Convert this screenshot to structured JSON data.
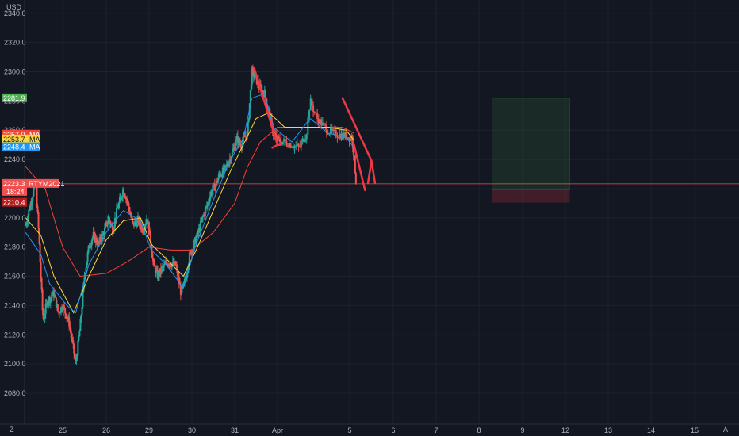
{
  "currency_label": "USD",
  "corner_buttons": {
    "left": "Z",
    "right": "A"
  },
  "chart_data": {
    "type": "candlestick",
    "symbol": "RTYM2021",
    "countdown": "18:24",
    "ylim": [
      2066,
      2350
    ],
    "y_ticks": [
      2080.0,
      2100.0,
      2120.0,
      2140.0,
      2160.0,
      2180.0,
      2200.0,
      2220.0,
      2240.0,
      2260.0,
      2280.0,
      2300.0,
      2320.0,
      2340.0
    ],
    "x_ticks": [
      {
        "label": "25",
        "day": 0
      },
      {
        "label": "26",
        "day": 1
      },
      {
        "label": "29",
        "day": 2
      },
      {
        "label": "30",
        "day": 3
      },
      {
        "label": "31",
        "day": 4
      },
      {
        "label": "Apr",
        "day": 5
      },
      {
        "label": "5",
        "day": 6
      },
      {
        "label": "6",
        "day": 7
      },
      {
        "label": "7",
        "day": 8
      },
      {
        "label": "8",
        "day": 9
      },
      {
        "label": "9",
        "day": 10
      },
      {
        "label": "12",
        "day": 11
      },
      {
        "label": "13",
        "day": 12
      },
      {
        "label": "14",
        "day": 13
      },
      {
        "label": "15",
        "day": 14
      }
    ],
    "price_path": [
      [
        -0.85,
        2195
      ],
      [
        -0.75,
        2208
      ],
      [
        -0.62,
        2225
      ],
      [
        -0.55,
        2190
      ],
      [
        -0.45,
        2130
      ],
      [
        -0.35,
        2143
      ],
      [
        -0.2,
        2148
      ],
      [
        -0.1,
        2135
      ],
      [
        0.0,
        2140
      ],
      [
        0.15,
        2128
      ],
      [
        0.3,
        2100
      ],
      [
        0.4,
        2125
      ],
      [
        0.5,
        2160
      ],
      [
        0.6,
        2180
      ],
      [
        0.7,
        2188
      ],
      [
        0.82,
        2182
      ],
      [
        0.95,
        2190
      ],
      [
        1.05,
        2200
      ],
      [
        1.15,
        2192
      ],
      [
        1.25,
        2205
      ],
      [
        1.4,
        2220
      ],
      [
        1.5,
        2210
      ],
      [
        1.62,
        2195
      ],
      [
        1.75,
        2198
      ],
      [
        1.85,
        2192
      ],
      [
        1.95,
        2200
      ],
      [
        2.02,
        2188
      ],
      [
        2.1,
        2168
      ],
      [
        2.2,
        2160
      ],
      [
        2.3,
        2165
      ],
      [
        2.45,
        2170
      ],
      [
        2.55,
        2168
      ],
      [
        2.62,
        2168
      ],
      [
        2.75,
        2148
      ],
      [
        2.85,
        2158
      ],
      [
        2.95,
        2175
      ],
      [
        3.05,
        2182
      ],
      [
        3.15,
        2190
      ],
      [
        3.25,
        2200
      ],
      [
        3.35,
        2208
      ],
      [
        3.45,
        2218
      ],
      [
        3.55,
        2222
      ],
      [
        3.65,
        2230
      ],
      [
        3.75,
        2232
      ],
      [
        3.85,
        2238
      ],
      [
        3.95,
        2245
      ],
      [
        4.05,
        2254
      ],
      [
        4.15,
        2250
      ],
      [
        4.25,
        2256
      ],
      [
        4.3,
        2258
      ],
      [
        4.4,
        2300
      ],
      [
        4.5,
        2295
      ],
      [
        4.6,
        2288
      ],
      [
        4.7,
        2285
      ],
      [
        4.8,
        2272
      ],
      [
        4.9,
        2258
      ],
      [
        5.0,
        2253
      ],
      [
        5.1,
        2252
      ],
      [
        5.2,
        2250
      ],
      [
        5.3,
        2248
      ],
      [
        5.4,
        2258
      ],
      [
        5.45,
        2280
      ],
      [
        5.55,
        2268
      ],
      [
        5.65,
        2262
      ],
      [
        5.75,
        2258
      ],
      [
        5.85,
        2257
      ],
      [
        5.95,
        2256
      ],
      [
        6.05,
        2255
      ],
      [
        6.1,
        2242
      ],
      [
        6.15,
        2223
      ]
    ],
    "moving_averages": [
      {
        "name": "MA",
        "color": "#f44336",
        "last": 2257.0,
        "points": [
          [
            -0.85,
            2235
          ],
          [
            -0.4,
            2220
          ],
          [
            0.0,
            2180
          ],
          [
            0.4,
            2160
          ],
          [
            1.0,
            2162
          ],
          [
            1.5,
            2170
          ],
          [
            2.0,
            2180
          ],
          [
            2.5,
            2178
          ],
          [
            3.0,
            2178
          ],
          [
            3.5,
            2190
          ],
          [
            4.0,
            2210
          ],
          [
            4.3,
            2235
          ],
          [
            4.6,
            2252
          ],
          [
            5.0,
            2262
          ],
          [
            5.5,
            2262
          ],
          [
            5.9,
            2262
          ],
          [
            6.1,
            2258
          ]
        ]
      },
      {
        "name": "MA",
        "color": "#fdd835",
        "last": 2253.7,
        "points": [
          [
            -0.85,
            2200
          ],
          [
            -0.5,
            2188
          ],
          [
            -0.2,
            2160
          ],
          [
            0.25,
            2135
          ],
          [
            0.6,
            2160
          ],
          [
            1.0,
            2185
          ],
          [
            1.4,
            2198
          ],
          [
            1.8,
            2200
          ],
          [
            2.05,
            2182
          ],
          [
            2.4,
            2172
          ],
          [
            2.8,
            2160
          ],
          [
            3.1,
            2178
          ],
          [
            3.5,
            2205
          ],
          [
            3.9,
            2232
          ],
          [
            4.2,
            2250
          ],
          [
            4.5,
            2268
          ],
          [
            4.8,
            2272
          ],
          [
            5.1,
            2262
          ],
          [
            5.4,
            2262
          ],
          [
            5.7,
            2262
          ],
          [
            5.95,
            2260
          ],
          [
            6.1,
            2253
          ]
        ]
      },
      {
        "name": "MA",
        "color": "#2196f3",
        "last": 2248.4,
        "points": [
          [
            -0.85,
            2190
          ],
          [
            -0.5,
            2175
          ],
          [
            -0.3,
            2155
          ],
          [
            0.1,
            2140
          ],
          [
            0.3,
            2135
          ],
          [
            0.6,
            2168
          ],
          [
            1.0,
            2190
          ],
          [
            1.4,
            2205
          ],
          [
            1.8,
            2198
          ],
          [
            2.05,
            2178
          ],
          [
            2.4,
            2168
          ],
          [
            2.8,
            2152
          ],
          [
            3.1,
            2182
          ],
          [
            3.5,
            2212
          ],
          [
            3.9,
            2240
          ],
          [
            4.2,
            2254
          ],
          [
            4.4,
            2282
          ],
          [
            4.7,
            2285
          ],
          [
            4.9,
            2262
          ],
          [
            5.2,
            2252
          ],
          [
            5.45,
            2268
          ],
          [
            5.7,
            2258
          ],
          [
            5.95,
            2255
          ],
          [
            6.1,
            2248
          ]
        ]
      }
    ],
    "highlighted_prices": [
      {
        "value": 2281.9,
        "color": "#4caf50"
      },
      {
        "value": 2219.2,
        "color": "#1b5e20"
      },
      {
        "value": 2210.4,
        "color": "#b71c1c"
      }
    ],
    "last_price": {
      "value": 2223.3,
      "color": "#f0504e"
    },
    "position_tool": {
      "x0_day": 9.3,
      "x1_day": 11.1,
      "target": 2281.9,
      "entry": 2219.2,
      "stop": 2210.4
    },
    "drawn_arrows": [
      {
        "color": "#f23645",
        "points": [
          [
            4.45,
            2303
          ],
          [
            5.0,
            2250
          ]
        ],
        "head": [
          [
            4.88,
            2248
          ],
          [
            5.05,
            2250
          ]
        ]
      },
      {
        "color": "#f23645",
        "points": [
          [
            5.9,
            2282
          ],
          [
            6.5,
            2239
          ]
        ],
        "head": [
          [
            6.42,
            2224
          ],
          [
            6.58,
            2224
          ]
        ]
      },
      {
        "color": "#f23645",
        "points": [
          [
            6.1,
            2250
          ],
          [
            6.35,
            2219
          ]
        ],
        "head": null
      }
    ]
  }
}
